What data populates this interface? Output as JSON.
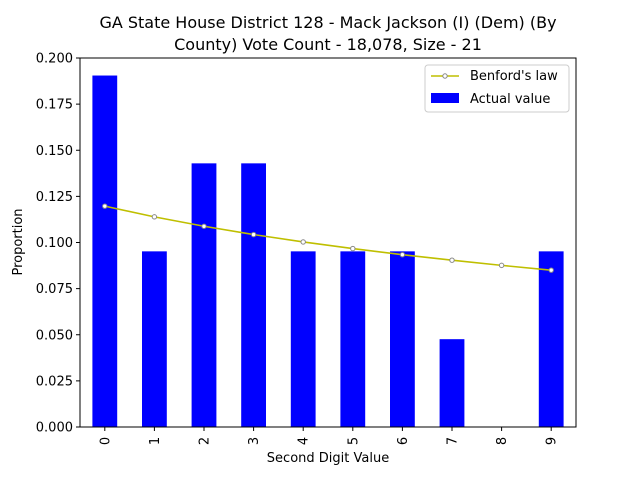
{
  "chart_data": {
    "type": "bar",
    "title_line1": "GA State House District 128 - Mack Jackson (I) (Dem) (By",
    "title_line2": "County) Vote Count - 18,078, Size - 21",
    "xlabel": "Second Digit Value",
    "ylabel": "Proportion",
    "categories": [
      "0",
      "1",
      "2",
      "3",
      "4",
      "5",
      "6",
      "7",
      "8",
      "9"
    ],
    "ylim": [
      0,
      0.2
    ],
    "yticks": [
      "0.000",
      "0.025",
      "0.050",
      "0.075",
      "0.100",
      "0.125",
      "0.150",
      "0.175",
      "0.200"
    ],
    "series": [
      {
        "name": "Actual value",
        "kind": "bar",
        "color": "#0000ff",
        "values": [
          0.1905,
          0.0952,
          0.1429,
          0.1429,
          0.0952,
          0.0952,
          0.0952,
          0.0476,
          0.0,
          0.0952
        ]
      },
      {
        "name": "Benford's law",
        "kind": "line",
        "color": "#bfbf00",
        "values": [
          0.1197,
          0.1139,
          0.1088,
          0.1043,
          0.1003,
          0.0967,
          0.0934,
          0.0904,
          0.0876,
          0.085
        ]
      }
    ],
    "legend": {
      "position": "top-right",
      "entries": [
        "Benford's law",
        "Actual value"
      ]
    },
    "grid": false
  }
}
